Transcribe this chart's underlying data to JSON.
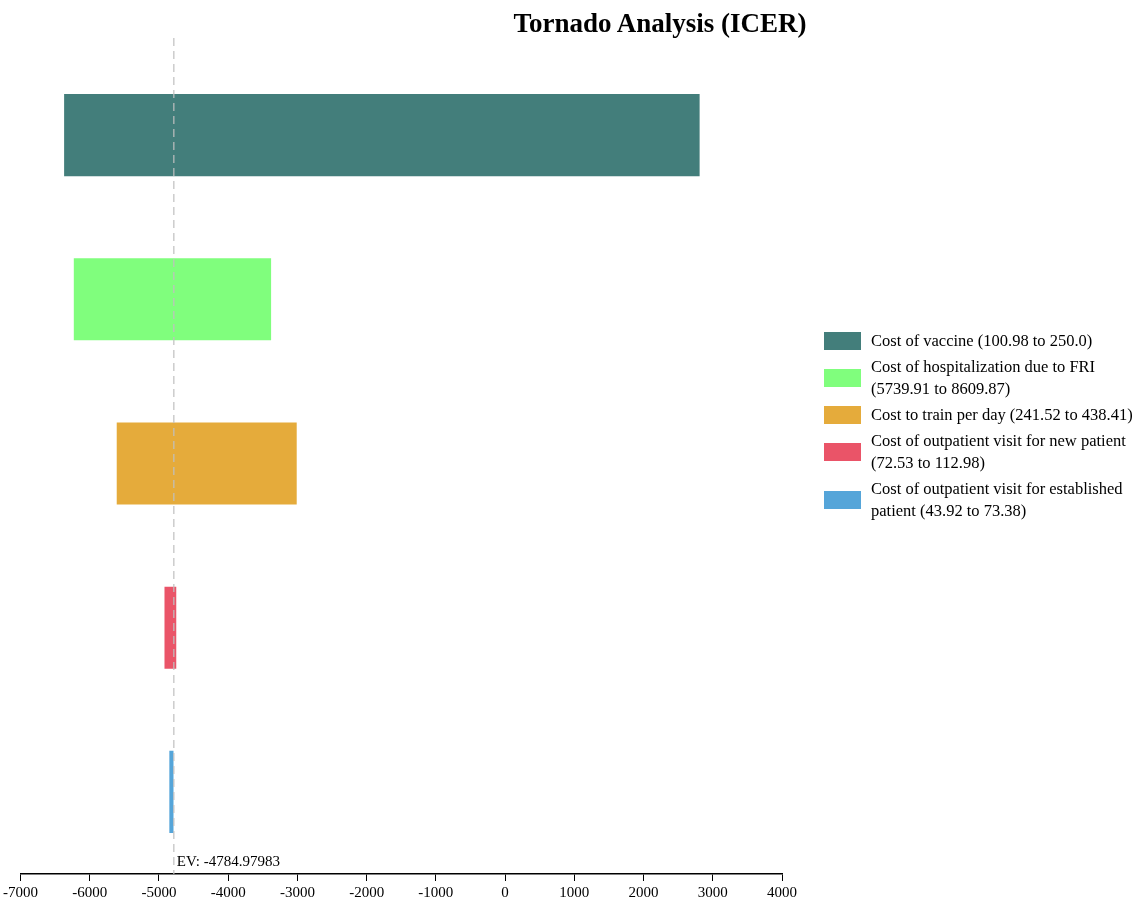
{
  "chart_data": {
    "type": "bar",
    "orientation": "horizontal",
    "title": "Tornado Analysis (ICER)",
    "categories": [
      null,
      null,
      null,
      null,
      null
    ],
    "series": [
      {
        "name": "Cost of vaccine (100.98 to 250.0)",
        "color": "#437e7b",
        "values": [
          9180,
          null,
          null,
          null,
          null
        ],
        "base": [
          -6370,
          null,
          null,
          null,
          null
        ]
      },
      {
        "name": "Cost of hospitalization due to FRI (5739.91 to 8609.87)",
        "color": "#80fe7d",
        "values": [
          null,
          2850,
          null,
          null,
          null
        ],
        "base": [
          null,
          -6230,
          null,
          null,
          null
        ]
      },
      {
        "name": "Cost to train per day (241.52 to 438.41)",
        "color": "#e5ab3b",
        "values": [
          null,
          null,
          2600,
          null,
          null
        ],
        "base": [
          null,
          null,
          -5610,
          null,
          null
        ]
      },
      {
        "name": "Cost of outpatient visit for new patient (72.53 to 112.98)",
        "color": "#ea5468",
        "values": [
          null,
          null,
          null,
          170,
          null
        ],
        "base": [
          null,
          null,
          null,
          -4920,
          null
        ]
      },
      {
        "name": "Cost of outpatient visit for established patient (43.92 to 73.38)",
        "color": "#55a5d9",
        "values": [
          null,
          null,
          null,
          null,
          60
        ],
        "base": [
          null,
          null,
          null,
          null,
          -4850
        ]
      }
    ],
    "xlim": [
      -7000,
      4000
    ],
    "xticks": [
      -7000,
      -6000,
      -5000,
      -4000,
      -3000,
      -2000,
      -1000,
      0,
      1000,
      2000,
      3000,
      4000
    ],
    "ref_lines": [
      {
        "axis": "x",
        "value": -4784.97983,
        "label": "EV: -4784.97983",
        "color": "#c0c0c0",
        "line_style": "dashed"
      }
    ],
    "grid": false,
    "legend": "right"
  }
}
